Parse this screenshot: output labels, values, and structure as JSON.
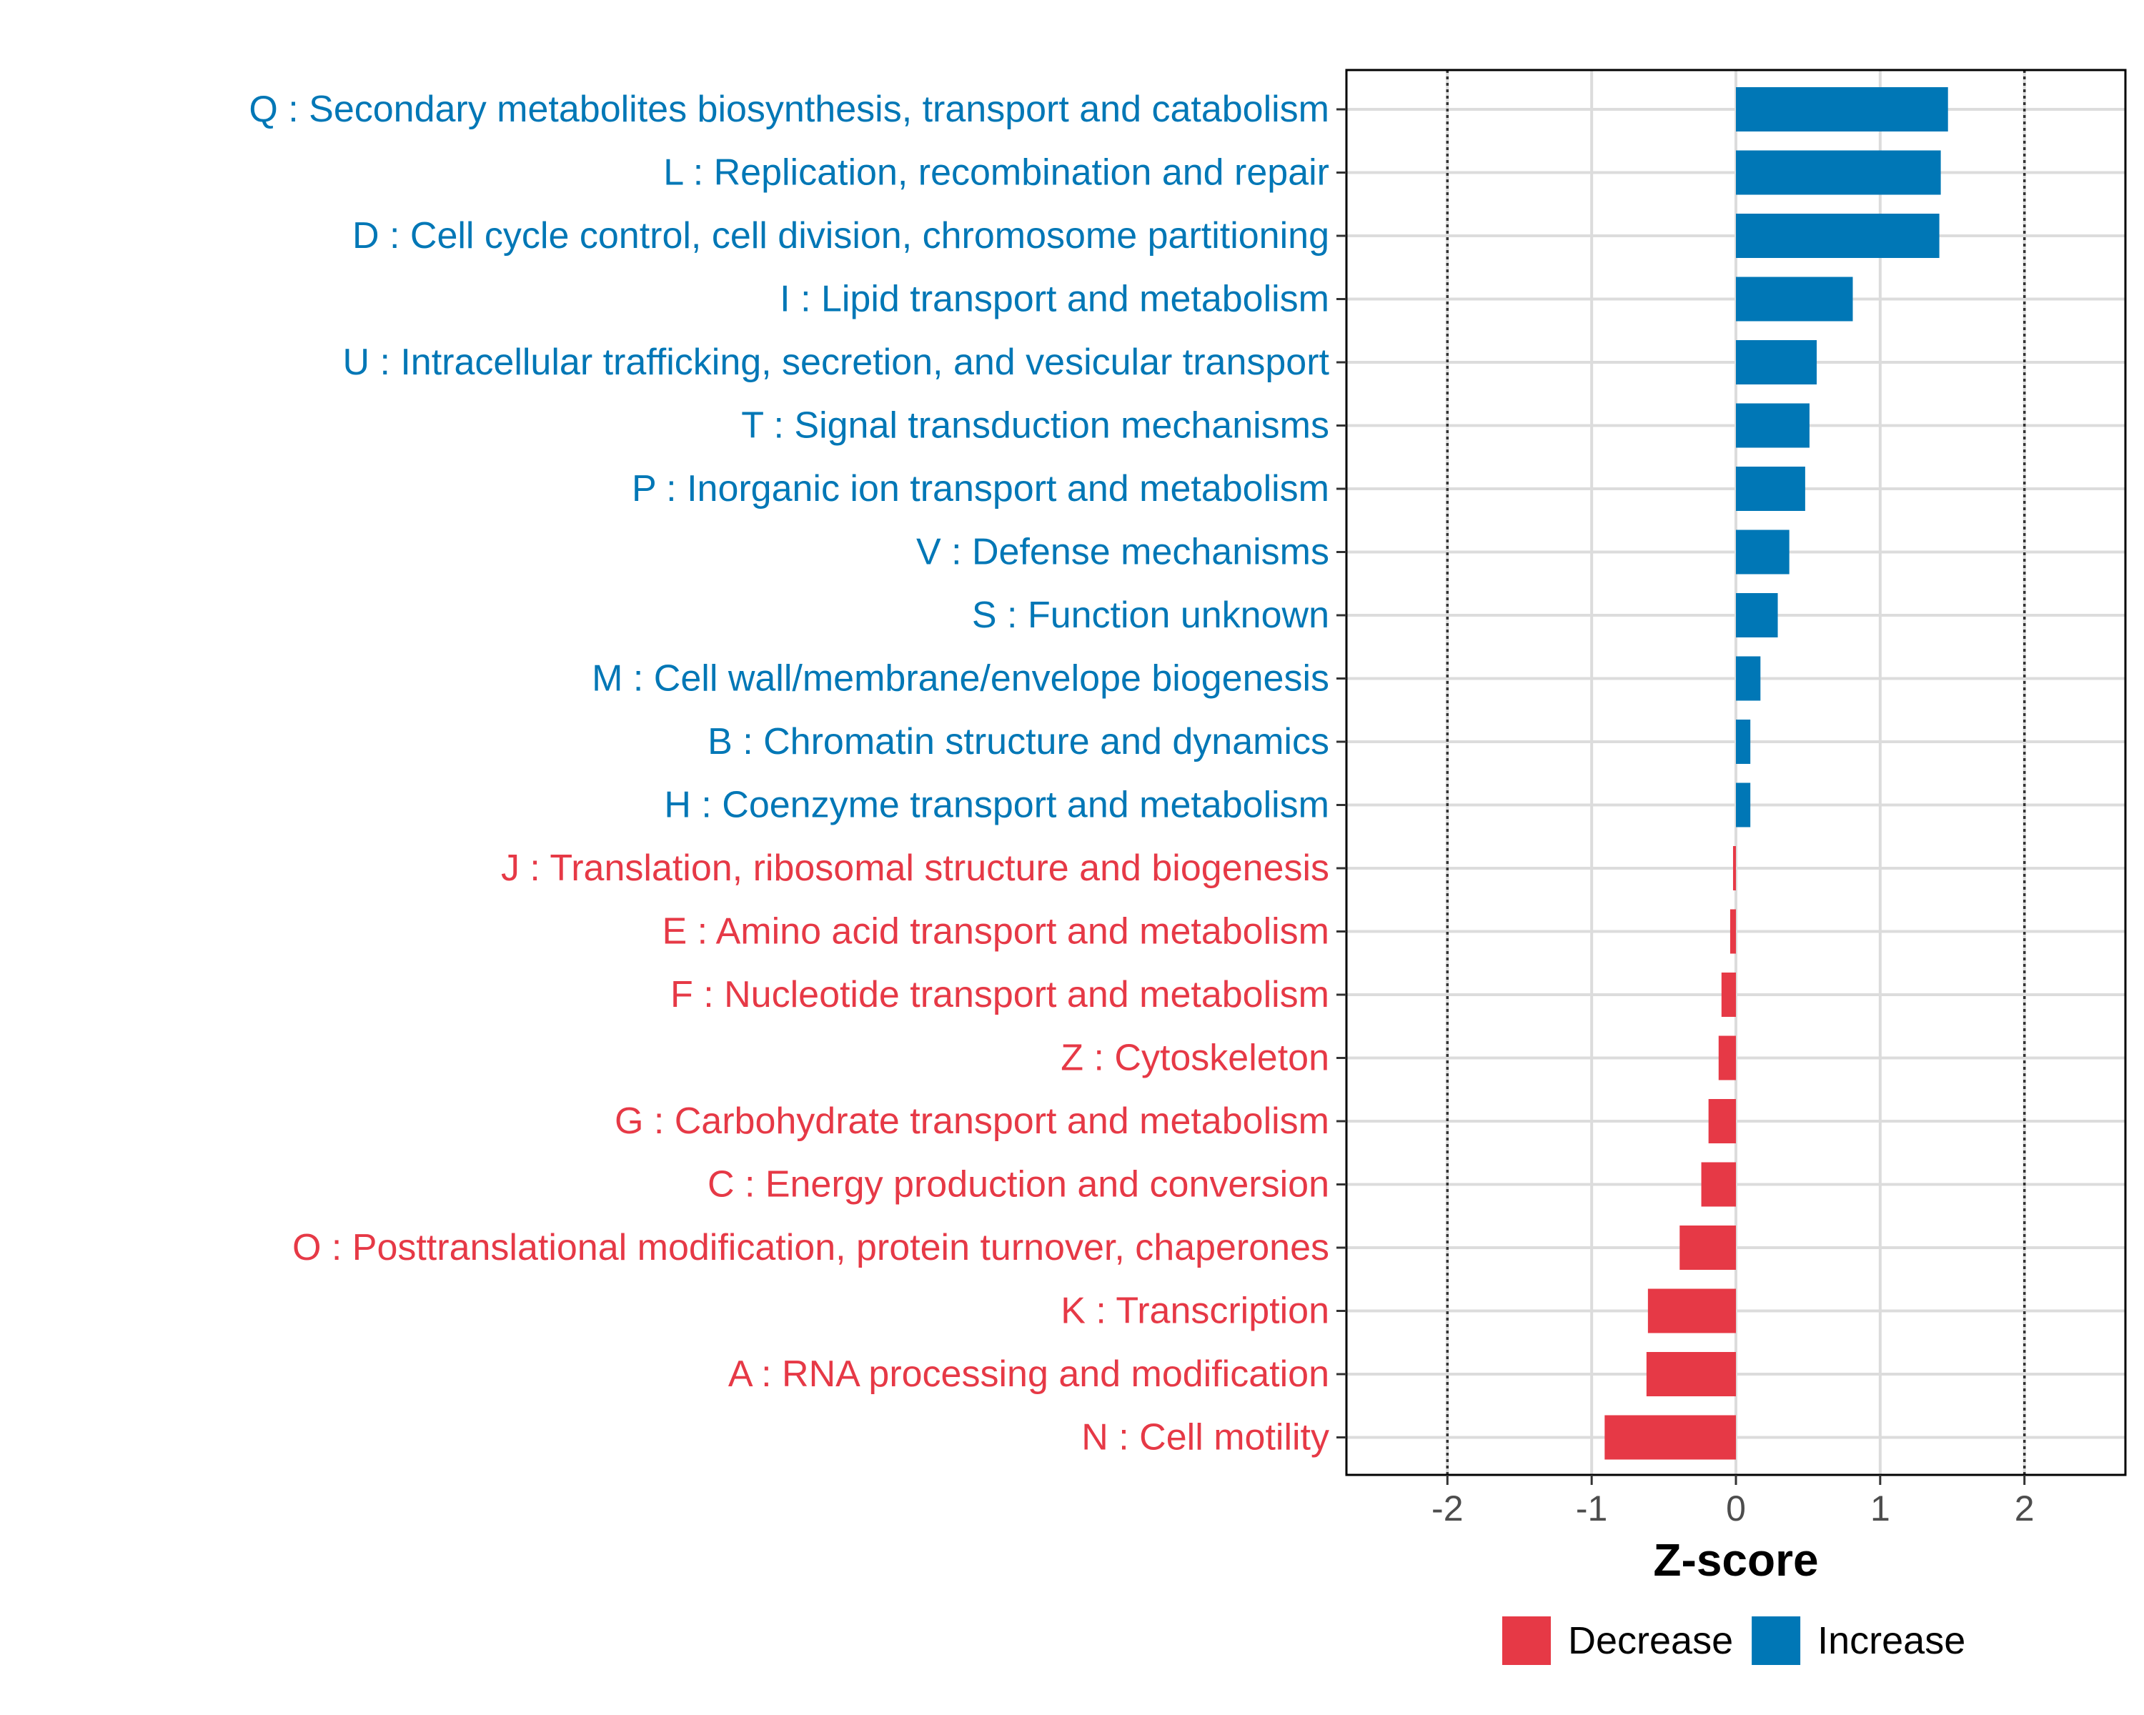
{
  "chart_data": {
    "type": "bar",
    "orientation": "horizontal",
    "xlabel": "Z-score",
    "xlim": [
      -2.7,
      2.7
    ],
    "xticks": [
      -2,
      -1,
      0,
      1,
      2
    ],
    "xtick_labels": [
      "-2",
      "-1",
      "0",
      "1",
      "2"
    ],
    "reference_lines": [
      -2,
      2
    ],
    "grid": true,
    "legend_position": "bottom",
    "legend": [
      {
        "name": "Decrease",
        "color": "#E63946"
      },
      {
        "name": "Increase",
        "color": "#0077B6"
      }
    ],
    "categories": [
      "Q : Secondary metabolites biosynthesis, transport and catabolism",
      "L : Replication, recombination and repair",
      "D : Cell cycle control, cell division, chromosome partitioning",
      "I : Lipid transport and metabolism",
      "U : Intracellular trafficking, secretion, and vesicular transport",
      "T : Signal transduction mechanisms",
      "P : Inorganic ion transport and metabolism",
      "V : Defense mechanisms",
      "S : Function unknown",
      "M : Cell wall/membrane/envelope biogenesis",
      "B : Chromatin structure and dynamics",
      "H : Coenzyme transport and metabolism",
      "J : Translation, ribosomal structure and biogenesis",
      "E : Amino acid transport and metabolism",
      "F : Nucleotide transport and metabolism",
      "Z : Cytoskeleton",
      "G : Carbohydrate transport and metabolism",
      "C : Energy production and conversion",
      "O : Posttranslational modification, protein turnover, chaperones",
      "K : Transcription",
      "A : RNA processing and modification",
      "N : Cell motility"
    ],
    "values": [
      1.47,
      1.42,
      1.41,
      0.81,
      0.56,
      0.51,
      0.48,
      0.37,
      0.29,
      0.17,
      0.1,
      0.1,
      -0.02,
      -0.04,
      -0.1,
      -0.12,
      -0.19,
      -0.24,
      -0.39,
      -0.61,
      -0.62,
      -0.91
    ],
    "groups": [
      "Increase",
      "Increase",
      "Increase",
      "Increase",
      "Increase",
      "Increase",
      "Increase",
      "Increase",
      "Increase",
      "Increase",
      "Increase",
      "Increase",
      "Decrease",
      "Decrease",
      "Decrease",
      "Decrease",
      "Decrease",
      "Decrease",
      "Decrease",
      "Decrease",
      "Decrease",
      "Decrease"
    ]
  }
}
